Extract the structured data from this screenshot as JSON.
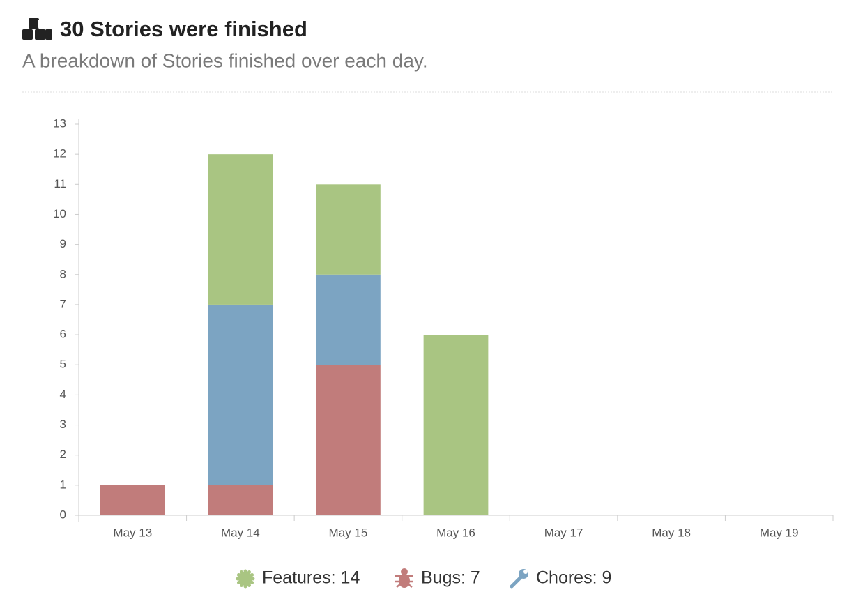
{
  "header": {
    "title": "30 Stories were finished",
    "subtitle": "A breakdown of Stories finished over each day."
  },
  "chart_data": {
    "type": "stacked_bar",
    "categories": [
      "May 13",
      "May 14",
      "May 15",
      "May 16",
      "May 17",
      "May 18",
      "May 19"
    ],
    "series": [
      {
        "name": "Bugs: 7",
        "color": "#c17c7b",
        "values": [
          1,
          1,
          5,
          0,
          0,
          0,
          0
        ]
      },
      {
        "name": "Chores: 9",
        "color": "#7ca4c2",
        "values": [
          0,
          6,
          3,
          0,
          0,
          0,
          0
        ]
      },
      {
        "name": "Features: 14",
        "color": "#a9c582",
        "values": [
          0,
          5,
          3,
          6,
          0,
          0,
          0
        ]
      }
    ],
    "legend_order": [
      2,
      0,
      1
    ],
    "ylim": [
      0,
      13
    ],
    "yticks": [
      0,
      1,
      2,
      3,
      4,
      5,
      6,
      7,
      8,
      9,
      10,
      11,
      12,
      13
    ],
    "grid": false
  }
}
